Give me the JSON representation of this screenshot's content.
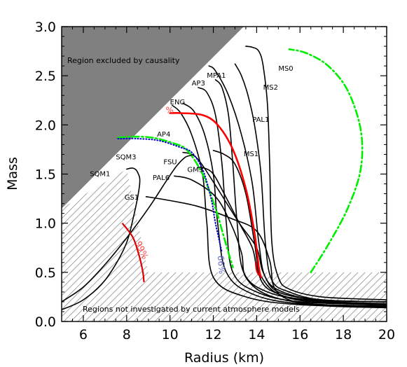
{
  "chart_data": {
    "type": "line",
    "title": "",
    "xlabel": "Radius (km)",
    "ylabel": "Mass",
    "xlim": [
      5,
      20
    ],
    "ylim": [
      0,
      3.0
    ],
    "x_ticks": [
      6,
      8,
      10,
      12,
      14,
      16,
      18,
      20
    ],
    "y_ticks": [
      0.0,
      0.5,
      1.0,
      1.5,
      2.0,
      2.5,
      3.0
    ],
    "y_tick_labels": [
      "0.0",
      "0.5",
      "1.0",
      "1.5",
      "2.0",
      "2.5",
      "3.0"
    ],
    "grid": false,
    "regions": {
      "causality_label": "Region excluded by causality",
      "causality_polygon": [
        [
          5,
          1.15
        ],
        [
          5,
          3.0
        ],
        [
          13.4,
          3.0
        ]
      ],
      "atmosphere_label": "Regions not investigated by current atmosphere models",
      "atmosphere_polygon": [
        [
          5,
          0.5
        ],
        [
          5,
          0.0
        ],
        [
          20,
          0.0
        ],
        [
          20,
          0.5
        ],
        [
          13.8,
          0.5
        ]
      ],
      "causality_color": "#808080"
    },
    "series": [
      {
        "label": "MS0",
        "label_at": [
          15.0,
          2.55
        ],
        "color": "#000000",
        "points": [
          [
            20,
            0.22
          ],
          [
            17,
            0.25
          ],
          [
            15.5,
            0.33
          ],
          [
            15,
            0.45
          ],
          [
            14.7,
            0.8
          ],
          [
            14.6,
            1.6
          ],
          [
            14.5,
            2.2
          ],
          [
            14.3,
            2.6
          ],
          [
            14.1,
            2.75
          ],
          [
            13.8,
            2.79
          ],
          [
            13.5,
            2.8
          ]
        ]
      },
      {
        "label": "MS2",
        "label_at": [
          14.3,
          2.36
        ],
        "color": "#000000",
        "points": [
          [
            20,
            0.2
          ],
          [
            17,
            0.22
          ],
          [
            15.5,
            0.3
          ],
          [
            14.7,
            0.42
          ],
          [
            14.4,
            0.8
          ],
          [
            14.2,
            1.5
          ],
          [
            13.9,
            2.0
          ],
          [
            13.6,
            2.3
          ],
          [
            13.3,
            2.5
          ],
          [
            13.0,
            2.62
          ]
        ]
      },
      {
        "label": "PAL1",
        "label_at": [
          13.8,
          2.03
        ],
        "color": "#000000",
        "points": [
          [
            20,
            0.18
          ],
          [
            17,
            0.21
          ],
          [
            15.2,
            0.3
          ],
          [
            14.4,
            0.45
          ],
          [
            14.1,
            0.8
          ],
          [
            13.8,
            1.4
          ],
          [
            13.3,
            1.9
          ],
          [
            12.7,
            2.3
          ],
          [
            12.1,
            2.55
          ],
          [
            11.8,
            2.6
          ]
        ]
      },
      {
        "label": "MS1",
        "label_at": [
          13.4,
          1.68
        ],
        "color": "#000000",
        "points": [
          [
            20,
            0.17
          ],
          [
            16.5,
            0.2
          ],
          [
            15,
            0.28
          ],
          [
            14.2,
            0.42
          ],
          [
            13.9,
            0.8
          ],
          [
            13.5,
            1.3
          ],
          [
            13.0,
            1.6
          ],
          [
            12.5,
            1.7
          ],
          [
            12.0,
            1.74
          ]
        ]
      },
      {
        "label": "MPA1",
        "label_at": [
          11.7,
          2.48
        ],
        "color": "#000000",
        "points": [
          [
            20,
            0.2
          ],
          [
            16.5,
            0.22
          ],
          [
            14.5,
            0.3
          ],
          [
            13.4,
            0.5
          ],
          [
            13.1,
            1.0
          ],
          [
            12.9,
            1.6
          ],
          [
            12.7,
            2.1
          ],
          [
            12.4,
            2.38
          ],
          [
            12.1,
            2.46
          ]
        ]
      },
      {
        "label": "AP3",
        "label_at": [
          11.0,
          2.4
        ],
        "color": "#000000",
        "points": [
          [
            20,
            0.17
          ],
          [
            16,
            0.2
          ],
          [
            14,
            0.3
          ],
          [
            12.9,
            0.5
          ],
          [
            12.6,
            1.0
          ],
          [
            12.4,
            1.6
          ],
          [
            12.1,
            2.1
          ],
          [
            11.7,
            2.33
          ],
          [
            11.3,
            2.38
          ]
        ]
      },
      {
        "label": "ENG",
        "label_at": [
          10.0,
          2.21
        ],
        "color": "#000000",
        "points": [
          [
            20,
            0.16
          ],
          [
            16,
            0.18
          ],
          [
            13.8,
            0.28
          ],
          [
            12.6,
            0.5
          ],
          [
            12.2,
            1.0
          ],
          [
            12.0,
            1.5
          ],
          [
            11.6,
            1.9
          ],
          [
            11.1,
            2.14
          ],
          [
            10.6,
            2.22
          ]
        ]
      },
      {
        "label": "AP4",
        "label_at": [
          9.4,
          1.88
        ],
        "color": "#000000",
        "points": [
          [
            20,
            0.15
          ],
          [
            16,
            0.17
          ],
          [
            13.5,
            0.25
          ],
          [
            12.0,
            0.45
          ],
          [
            11.7,
            1.0
          ],
          [
            11.5,
            1.5
          ],
          [
            11.0,
            1.9
          ],
          [
            10.5,
            2.12
          ],
          [
            10.1,
            2.2
          ]
        ]
      },
      {
        "label": "FSU",
        "label_at": [
          9.7,
          1.6
        ],
        "color": "#000000",
        "points": [
          [
            20,
            0.2
          ],
          [
            17,
            0.22
          ],
          [
            15,
            0.3
          ],
          [
            14.3,
            0.5
          ],
          [
            14.0,
            0.75
          ],
          [
            13.2,
            1.0
          ],
          [
            12.2,
            1.35
          ],
          [
            11.4,
            1.62
          ],
          [
            11.0,
            1.7
          ],
          [
            10.6,
            1.72
          ]
        ]
      },
      {
        "label": "GM3",
        "label_at": [
          10.8,
          1.52
        ],
        "color": "#000000",
        "points": [
          [
            20,
            0.18
          ],
          [
            17,
            0.2
          ],
          [
            15,
            0.28
          ],
          [
            14.1,
            0.5
          ],
          [
            13.8,
            0.75
          ],
          [
            13.2,
            1.0
          ],
          [
            12.5,
            1.3
          ],
          [
            12.0,
            1.5
          ],
          [
            11.6,
            1.56
          ],
          [
            11.3,
            1.57
          ]
        ]
      },
      {
        "label": "PAL6",
        "label_at": [
          9.2,
          1.44
        ],
        "color": "#000000",
        "points": [
          [
            20,
            0.15
          ],
          [
            16.5,
            0.18
          ],
          [
            14.5,
            0.27
          ],
          [
            13.5,
            0.45
          ],
          [
            13.3,
            0.7
          ],
          [
            12.8,
            1.0
          ],
          [
            12.1,
            1.27
          ],
          [
            11.0,
            1.44
          ],
          [
            10.2,
            1.48
          ]
        ]
      },
      {
        "label": "GS1",
        "label_at": [
          7.9,
          1.24
        ],
        "color": "#000000",
        "points": [
          [
            20,
            0.14
          ],
          [
            17,
            0.16
          ],
          [
            15.5,
            0.22
          ],
          [
            14.8,
            0.35
          ],
          [
            14.6,
            0.62
          ],
          [
            14.0,
            0.92
          ],
          [
            12.8,
            1.05
          ],
          [
            11.3,
            1.17
          ],
          [
            10,
            1.23
          ],
          [
            8.9,
            1.27
          ]
        ]
      },
      {
        "label": "SQM3",
        "label_at": [
          7.5,
          1.65
        ],
        "color": "#000000",
        "points": [
          [
            5,
            0.2
          ],
          [
            6,
            0.35
          ],
          [
            7,
            0.58
          ],
          [
            8,
            0.85
          ],
          [
            9,
            1.15
          ],
          [
            9.8,
            1.42
          ],
          [
            10.3,
            1.58
          ],
          [
            10.7,
            1.67
          ],
          [
            11.0,
            1.69
          ]
        ]
      },
      {
        "label": "SQM1",
        "label_at": [
          6.3,
          1.48
        ],
        "color": "#000000",
        "points": [
          [
            5,
            0.12
          ],
          [
            6,
            0.22
          ],
          [
            7,
            0.42
          ],
          [
            7.9,
            0.75
          ],
          [
            8.3,
            1.05
          ],
          [
            8.6,
            1.4
          ],
          [
            8.5,
            1.52
          ],
          [
            8.3,
            1.56
          ],
          [
            8.0,
            1.55
          ]
        ]
      },
      {
        "label": "",
        "label_at": null,
        "color": "#ff0000",
        "dash": "",
        "points": [
          [
            10.0,
            2.12
          ],
          [
            10.5,
            2.12
          ],
          [
            11.5,
            2.1
          ],
          [
            12.2,
            2.0
          ],
          [
            12.9,
            1.75
          ],
          [
            13.5,
            1.35
          ],
          [
            13.9,
            0.9
          ],
          [
            14.1,
            0.55
          ],
          [
            14.2,
            0.45
          ]
        ]
      },
      {
        "label": "",
        "label_at": null,
        "color": "#00ee00",
        "dash": "10 4 2 4",
        "points": [
          [
            16.5,
            0.5
          ],
          [
            17.3,
            0.78
          ],
          [
            18.2,
            1.15
          ],
          [
            18.8,
            1.55
          ],
          [
            18.8,
            1.95
          ],
          [
            18.2,
            2.35
          ],
          [
            17.3,
            2.6
          ],
          [
            16.3,
            2.73
          ],
          [
            15.5,
            2.77
          ]
        ]
      },
      {
        "label": "",
        "label_at": null,
        "color": "#00ee00",
        "dash": "10 4 2 4",
        "points": [
          [
            7.6,
            1.87
          ],
          [
            8.3,
            1.88
          ],
          [
            9.2,
            1.87
          ],
          [
            10.2,
            1.81
          ],
          [
            10.8,
            1.74
          ],
          [
            11.5,
            1.5
          ],
          [
            12.1,
            1.15
          ],
          [
            12.5,
            0.85
          ],
          [
            12.9,
            0.55
          ]
        ]
      },
      {
        "label": "",
        "label_at": null,
        "color": "#0000cc",
        "dash": "1 3",
        "points": [
          [
            7.6,
            1.86
          ],
          [
            8.5,
            1.86
          ],
          [
            9.5,
            1.84
          ],
          [
            10.5,
            1.77
          ],
          [
            11.0,
            1.72
          ],
          [
            11.5,
            1.55
          ],
          [
            11.9,
            1.25
          ],
          [
            12.1,
            1.0
          ],
          [
            12.4,
            0.7
          ]
        ]
      }
    ],
    "contour_labels": [
      {
        "text": "99%",
        "x": 8.4,
        "y": 0.8,
        "color": "#ff4444",
        "rotate": 65
      },
      {
        "text": "66%",
        "x": 12.2,
        "y": 0.67,
        "color": "#6666cc",
        "rotate": 85
      },
      {
        "text": "%",
        "x": 9.8,
        "y": 2.12,
        "color": "#ff4444",
        "rotate": 0
      }
    ],
    "red_segments": [
      {
        "color": "#dd0000",
        "points": [
          [
            7.8,
            1.0
          ],
          [
            8.3,
            0.85
          ],
          [
            8.6,
            0.65
          ],
          [
            8.75,
            0.5
          ],
          [
            8.8,
            0.4
          ]
        ]
      },
      {
        "color": "#dd0000",
        "points": [
          [
            14.1,
            0.47
          ],
          [
            14.0,
            0.52
          ],
          [
            13.95,
            0.6
          ]
        ]
      }
    ]
  }
}
